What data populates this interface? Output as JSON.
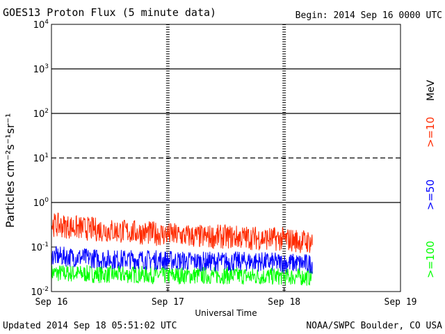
{
  "header": {
    "title": "GOES13 Proton Flux (5 minute data)",
    "begin": "Begin: 2014 Sep 16 0000 UTC"
  },
  "footer": {
    "updated": "Updated 2014 Sep 18 05:51:02 UTC",
    "credit": "NOAA/SWPC Boulder, CO USA"
  },
  "chart_data": {
    "type": "line",
    "title": "GOES13 Proton Flux (5 minute data)",
    "xlabel": "Universal Time",
    "ylabel": "Particles cm⁻²s⁻¹sr⁻¹",
    "y_scale": "log",
    "ylim": [
      0.01,
      10000
    ],
    "y_ticks": [
      {
        "base": "10",
        "exp": "4",
        "value": 10000
      },
      {
        "base": "10",
        "exp": "3",
        "value": 1000
      },
      {
        "base": "10",
        "exp": "2",
        "value": 100
      },
      {
        "base": "10",
        "exp": "1",
        "value": 10
      },
      {
        "base": "10",
        "exp": "0",
        "value": 1
      },
      {
        "base": "10",
        "exp": "-1",
        "value": 0.1
      },
      {
        "base": "10",
        "exp": "-2",
        "value": 0.01
      }
    ],
    "x_ticks": [
      "Sep 16",
      "Sep 17",
      "Sep 18",
      "Sep 19"
    ],
    "xlim_days": [
      0,
      3
    ],
    "data_end_day": 2.2437,
    "threshold_lines": [
      10,
      1,
      1000,
      100
    ],
    "unit_label": "MeV",
    "series": [
      {
        "name": ">=10",
        "color": "#ff2a00",
        "x_day": [
          0,
          0.25,
          0.5,
          0.75,
          1.0,
          1.25,
          1.5,
          1.75,
          2.0,
          2.2437
        ],
        "y_typical": [
          0.3,
          0.25,
          0.22,
          0.2,
          0.18,
          0.16,
          0.16,
          0.15,
          0.14,
          0.12
        ]
      },
      {
        "name": ">=50",
        "color": "#0000ff",
        "x_day": [
          0,
          0.25,
          0.5,
          0.75,
          1.0,
          1.25,
          1.5,
          1.75,
          2.0,
          2.2437
        ],
        "y_typical": [
          0.06,
          0.055,
          0.05,
          0.05,
          0.048,
          0.045,
          0.045,
          0.045,
          0.042,
          0.04
        ]
      },
      {
        "name": ">=100",
        "color": "#00ff00",
        "x_day": [
          0,
          0.25,
          0.5,
          0.75,
          1.0,
          1.25,
          1.5,
          1.75,
          2.0,
          2.2437
        ],
        "y_typical": [
          0.025,
          0.024,
          0.023,
          0.023,
          0.022,
          0.022,
          0.022,
          0.021,
          0.021,
          0.02
        ]
      }
    ]
  }
}
